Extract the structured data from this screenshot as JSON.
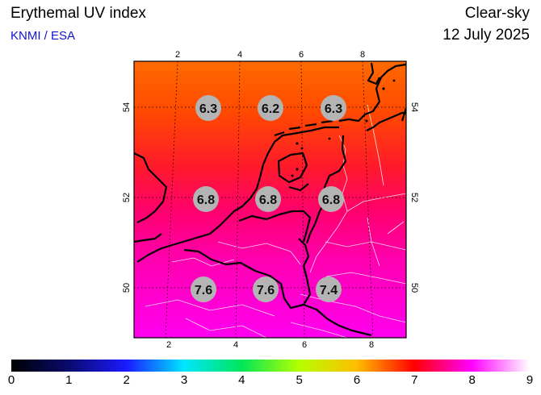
{
  "header": {
    "title": "Erythemal UV index",
    "source": "KNMI / ESA",
    "mode": "Clear-sky",
    "date": "12 July 2025"
  },
  "map": {
    "region": "Netherlands / Benelux",
    "longitude_ticks_top": [
      "2",
      "4",
      "6",
      "8"
    ],
    "longitude_ticks_bottom": [
      "2",
      "4",
      "6",
      "8"
    ],
    "latitude_ticks_left": [
      "54",
      "52",
      "50"
    ],
    "latitude_ticks_right": [
      "54",
      "52",
      "50"
    ],
    "uv_values": [
      {
        "lon": 3,
        "lat": 54,
        "value": "6.3"
      },
      {
        "lon": 5,
        "lat": 54,
        "value": "6.2"
      },
      {
        "lon": 7,
        "lat": 54,
        "value": "6.3"
      },
      {
        "lon": 3,
        "lat": 52,
        "value": "6.8"
      },
      {
        "lon": 5,
        "lat": 52,
        "value": "6.8"
      },
      {
        "lon": 7,
        "lat": 52,
        "value": "6.8"
      },
      {
        "lon": 3,
        "lat": 50,
        "value": "7.6"
      },
      {
        "lon": 5,
        "lat": 50,
        "value": "7.6"
      },
      {
        "lon": 7,
        "lat": 50,
        "value": "7.4"
      }
    ]
  },
  "colorbar": {
    "ticks": [
      "0",
      "1",
      "2",
      "3",
      "4",
      "5",
      "6",
      "7",
      "8",
      "9"
    ],
    "colors": [
      "#000000",
      "#0a0a6e",
      "#1a1aff",
      "#00e6ff",
      "#00e65a",
      "#b4ff00",
      "#ffbe00",
      "#ff0000",
      "#ff00ff",
      "#ffffff"
    ]
  }
}
